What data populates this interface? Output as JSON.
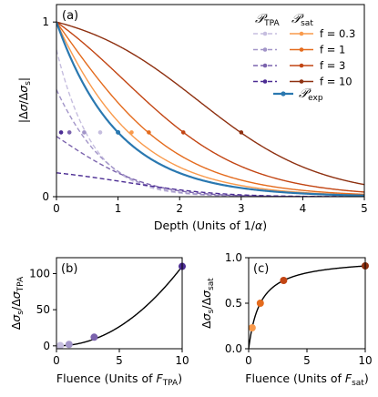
{
  "chart_data": [
    {
      "id": "a",
      "type": "line",
      "panel_label": "(a)",
      "xlabel": "Depth (Units of 1/α)",
      "ylabel": "|Δσ/Δσs|",
      "xlim": [
        0,
        5
      ],
      "ylim": [
        0,
        1.1
      ],
      "xticks": [
        "0",
        "1",
        "2",
        "3",
        "4",
        "5"
      ],
      "yticks": [
        "0",
        "1"
      ],
      "legend": {
        "position": "top-right",
        "tpa_header": "𝒫",
        "tpa_header_sub": "TPA",
        "sat_header": "𝒫",
        "sat_header_sub": "sat",
        "f_labels": [
          "f = 0.3",
          "f = 1",
          "f = 3",
          "f = 10"
        ],
        "exp_label": "𝒫",
        "exp_label_sub": "exp"
      },
      "f_values": [
        0.3,
        1,
        3,
        10
      ],
      "colors": {
        "tpa": [
          "#c6bedf",
          "#a295c8",
          "#7b63ad",
          "#4b2c93"
        ],
        "sat": [
          "#f99a4c",
          "#e46b1d",
          "#c24513",
          "#8e3010"
        ],
        "exp": "#2a78b0"
      },
      "markers": {
        "y": 0.368,
        "tpa_x": [
          0.71,
          0.45,
          0.21,
          0.075
        ],
        "sat_x": [
          1.22,
          1.5,
          2.06,
          3.0
        ],
        "exp_x": 1.0
      }
    },
    {
      "id": "b",
      "type": "scatter",
      "panel_label": "(b)",
      "xlabel": "Fluence (Units of FTPA)",
      "xlabel_main": "Fluence (Units of ",
      "xlabel_var": "F",
      "xlabel_sub": "TPA",
      "xlabel_end": ")",
      "ylabel": "Δσs/ΔσTPA",
      "xlim": [
        0,
        10
      ],
      "ylim": [
        -4,
        122
      ],
      "xticks": [
        "0",
        "5",
        "10"
      ],
      "yticks": [
        "0",
        "50",
        "100"
      ],
      "points": [
        {
          "x": 0.3,
          "y": 0.4
        },
        {
          "x": 1,
          "y": 2
        },
        {
          "x": 3,
          "y": 12
        },
        {
          "x": 10,
          "y": 110
        }
      ],
      "fit": "power law through points"
    },
    {
      "id": "c",
      "type": "scatter",
      "panel_label": "(c)",
      "xlabel": "Fluence (Units of Fsat)",
      "xlabel_main": "Fluence (Units of ",
      "xlabel_var": "F",
      "xlabel_sub": "sat",
      "xlabel_end": ")",
      "ylabel": "Δσs/Δσsat",
      "xlim": [
        0,
        10
      ],
      "ylim": [
        0,
        1.0
      ],
      "xticks": [
        "0",
        "5",
        "10"
      ],
      "yticks": [
        "0.0",
        "0.5",
        "1.0"
      ],
      "points": [
        {
          "x": 0.3,
          "y": 0.23
        },
        {
          "x": 1,
          "y": 0.5
        },
        {
          "x": 3,
          "y": 0.75
        },
        {
          "x": 10,
          "y": 0.91
        }
      ],
      "fit": "saturation curve f/(1+f)"
    }
  ]
}
